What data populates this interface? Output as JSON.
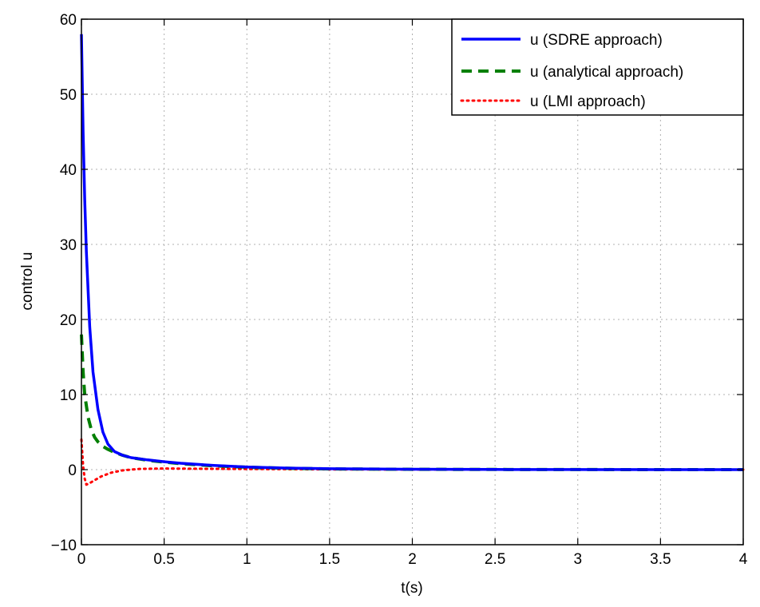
{
  "chart_data": {
    "type": "line",
    "xlabel": "t(s)",
    "ylabel": "control u",
    "xlim": [
      0,
      4
    ],
    "ylim": [
      -10,
      60
    ],
    "x_ticks": [
      0,
      0.5,
      1,
      1.5,
      2,
      2.5,
      3,
      3.5,
      4
    ],
    "x_tick_labels": [
      "0",
      "0.5",
      "1",
      "1.5",
      "2",
      "2.5",
      "3",
      "3.5",
      "4"
    ],
    "y_ticks": [
      -10,
      0,
      10,
      20,
      30,
      40,
      50,
      60
    ],
    "y_tick_labels": [
      "−10",
      "0",
      "10",
      "20",
      "30",
      "40",
      "50",
      "60"
    ],
    "grid": true,
    "legend_position": "top-right",
    "series": [
      {
        "name": "u (SDRE approach)",
        "color": "#0000ff",
        "style": "solid",
        "x": [
          0,
          0.01,
          0.02,
          0.03,
          0.05,
          0.07,
          0.1,
          0.13,
          0.16,
          0.2,
          0.25,
          0.3,
          0.4,
          0.5,
          0.6,
          0.8,
          1.0,
          1.25,
          1.5,
          2.0,
          2.5,
          3.0,
          3.5,
          4.0
        ],
        "y": [
          58,
          45,
          36,
          29,
          19,
          13,
          8,
          5,
          3.4,
          2.4,
          1.9,
          1.6,
          1.3,
          1.05,
          0.85,
          0.55,
          0.35,
          0.2,
          0.12,
          0.05,
          0.02,
          0.01,
          0.0,
          0.0
        ]
      },
      {
        "name": "u (analytical approach)",
        "color": "#007f00",
        "style": "dashed",
        "x": [
          0,
          0.01,
          0.02,
          0.04,
          0.06,
          0.08,
          0.1,
          0.13,
          0.16,
          0.2,
          0.25,
          0.3,
          0.4,
          0.5,
          0.6,
          0.8,
          1.0,
          1.25,
          1.5,
          2.0,
          2.5,
          3.0,
          3.5,
          4.0
        ],
        "y": [
          18,
          13,
          10,
          7,
          5.3,
          4.3,
          3.7,
          3.1,
          2.7,
          2.3,
          1.9,
          1.6,
          1.25,
          1.0,
          0.8,
          0.5,
          0.32,
          0.18,
          0.1,
          0.04,
          0.02,
          0.01,
          0.0,
          0.0
        ]
      },
      {
        "name": "u (LMI approach)",
        "color": "#ff0000",
        "style": "dotted",
        "x": [
          0,
          0.01,
          0.02,
          0.03,
          0.05,
          0.08,
          0.12,
          0.18,
          0.25,
          0.35,
          0.5,
          0.7,
          1.0,
          1.5,
          2.0,
          3.0,
          4.0
        ],
        "y": [
          4,
          0.5,
          -1.2,
          -2.0,
          -1.8,
          -1.4,
          -0.9,
          -0.4,
          -0.1,
          0.1,
          0.15,
          0.12,
          0.08,
          0.03,
          0.01,
          0.0,
          0.0
        ]
      }
    ]
  }
}
